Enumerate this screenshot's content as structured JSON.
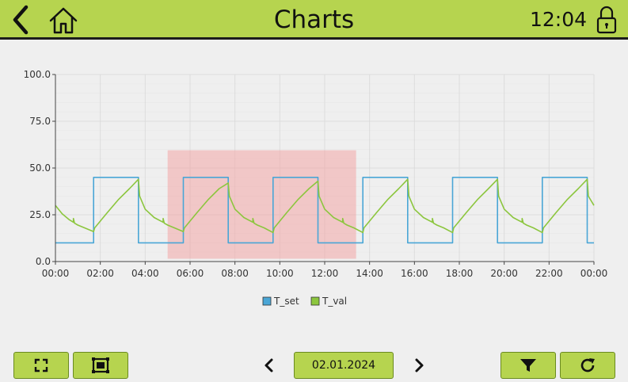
{
  "header": {
    "title": "Charts",
    "time": "12:04",
    "back_icon": "chevron-left-icon",
    "home_icon": "home-icon",
    "lock_icon": "lock-icon"
  },
  "colors": {
    "accent": "#b6d44f",
    "t_set": "#4aa6d6",
    "t_val": "#8cc63e",
    "selection": "#f2a5a5"
  },
  "toolbar": {
    "date": "02.01.2024",
    "fullscreen_icon": "fullscreen-icon",
    "zoom_select_icon": "zoom-select-icon",
    "prev_icon": "chevron-left-icon",
    "next_icon": "chevron-right-icon",
    "filter_icon": "filter-icon",
    "refresh_icon": "refresh-icon"
  },
  "chart_data": {
    "type": "line",
    "title": "",
    "xlabel": "",
    "ylabel": "",
    "ylim": [
      0,
      100
    ],
    "yticks": [
      "0.0",
      "25.0",
      "50.0",
      "75.0",
      "100.0"
    ],
    "xticks": [
      "00:00",
      "02:00",
      "04:00",
      "06:00",
      "08:00",
      "10:00",
      "12:00",
      "14:00",
      "16:00",
      "18:00",
      "20:00",
      "22:00",
      "00:00"
    ],
    "grid": true,
    "legend_position": "bottom",
    "highlight": {
      "start_hour": 5.0,
      "end_hour": 13.4,
      "low": 1.5,
      "high": 59.5
    },
    "series": [
      {
        "name": "T_set",
        "hours": [
          0,
          1.7,
          1.7,
          3.7,
          3.7,
          5.7,
          5.7,
          7.7,
          7.7,
          9.7,
          9.7,
          11.7,
          11.7,
          13.7,
          13.7,
          15.7,
          15.7,
          17.7,
          17.7,
          19.7,
          19.7,
          21.7,
          21.7,
          23.7,
          23.7,
          24.0
        ],
        "values": [
          10,
          10,
          45,
          45,
          10,
          10,
          45,
          45,
          10,
          10,
          45,
          45,
          10,
          10,
          45,
          45,
          10,
          10,
          45,
          45,
          10,
          10,
          45,
          45,
          10,
          10
        ]
      },
      {
        "name": "T_val",
        "hours": [
          0,
          0.3,
          0.6,
          0.8,
          0.8,
          0.85,
          1.0,
          1.3,
          1.7,
          1.75,
          2.3,
          2.8,
          3.3,
          3.7,
          3.75,
          4.0,
          4.4,
          4.8,
          4.8,
          4.85,
          5.0,
          5.3,
          5.7,
          5.75,
          6.3,
          6.8,
          7.3,
          7.7,
          7.75,
          8.0,
          8.4,
          8.8,
          8.8,
          8.85,
          9.0,
          9.3,
          9.7,
          9.75,
          10.3,
          10.8,
          11.3,
          11.7,
          11.75,
          12.0,
          12.4,
          12.8,
          12.8,
          12.85,
          13.0,
          13.3,
          13.7,
          13.75,
          14.3,
          14.8,
          15.3,
          15.7,
          15.75,
          16.0,
          16.4,
          16.8,
          16.8,
          16.85,
          17.0,
          17.3,
          17.7,
          17.75,
          18.3,
          18.8,
          19.3,
          19.7,
          19.75,
          20.0,
          20.4,
          20.8,
          20.8,
          20.85,
          21.0,
          21.3,
          21.7,
          21.75,
          22.3,
          22.8,
          23.3,
          23.7,
          23.75,
          24.0
        ],
        "values": [
          30,
          25.5,
          22.5,
          21,
          23,
          20.5,
          19.5,
          18,
          16,
          18,
          26,
          33,
          39,
          44,
          35,
          28,
          23.5,
          21,
          23,
          20.5,
          19.5,
          18,
          16,
          18,
          26,
          33,
          39,
          42,
          35,
          28,
          23.5,
          21,
          23,
          20.5,
          19.5,
          18,
          15.5,
          18,
          26,
          33,
          39,
          43,
          35,
          28,
          23.5,
          21,
          23,
          20.5,
          19.5,
          18,
          15.5,
          18,
          26,
          33,
          39,
          44,
          35,
          28,
          23.5,
          21,
          23,
          20.5,
          19.5,
          18,
          15.5,
          18,
          26,
          33,
          39,
          44,
          35,
          28,
          23.5,
          21,
          23,
          20.5,
          19.5,
          18,
          15.5,
          18,
          26,
          33,
          39,
          44,
          35,
          30
        ]
      }
    ]
  }
}
